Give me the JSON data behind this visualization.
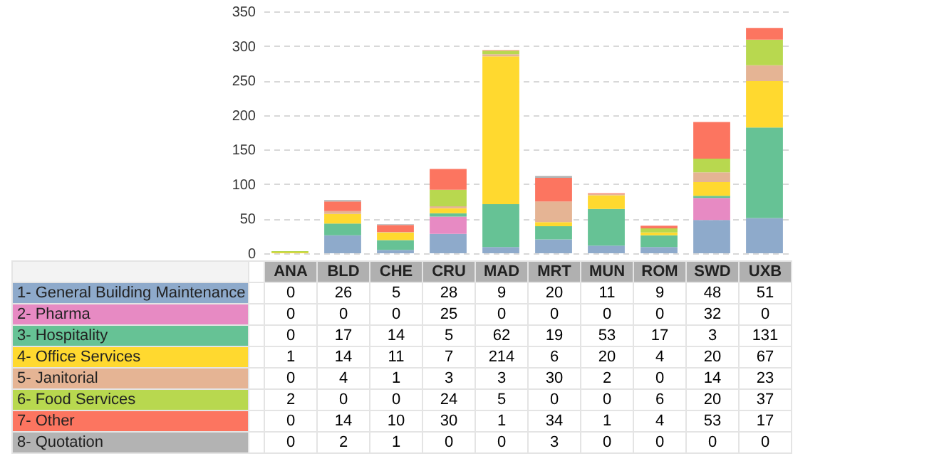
{
  "chart_data": {
    "type": "bar",
    "stacked": true,
    "categories": [
      "ANA",
      "BLD",
      "CHE",
      "CRU",
      "MAD",
      "MRT",
      "MUN",
      "ROM",
      "SWD",
      "UXB"
    ],
    "series": [
      {
        "name": "1- General Building Maintenance",
        "color": "#8eaacb",
        "values": [
          0,
          26,
          5,
          28,
          9,
          20,
          11,
          9,
          48,
          51
        ]
      },
      {
        "name": "2- Pharma",
        "color": "#e78ac3",
        "values": [
          0,
          0,
          0,
          25,
          0,
          0,
          0,
          0,
          32,
          0
        ]
      },
      {
        "name": "3- Hospitality",
        "color": "#66c295",
        "values": [
          0,
          17,
          14,
          5,
          62,
          19,
          53,
          17,
          3,
          131
        ]
      },
      {
        "name": "4- Office Services",
        "color": "#ffd92f",
        "values": [
          1,
          14,
          11,
          7,
          214,
          6,
          20,
          4,
          20,
          67
        ]
      },
      {
        "name": "5- Janitorial",
        "color": "#e5b494",
        "values": [
          0,
          4,
          1,
          3,
          3,
          30,
          2,
          0,
          14,
          23
        ]
      },
      {
        "name": "6- Food Services",
        "color": "#b8d84f",
        "values": [
          2,
          0,
          0,
          24,
          5,
          0,
          0,
          6,
          20,
          37
        ]
      },
      {
        "name": "7- Other",
        "color": "#fc7560",
        "values": [
          0,
          14,
          10,
          30,
          1,
          34,
          1,
          4,
          53,
          17
        ]
      },
      {
        "name": "8- Quotation",
        "color": "#b3b3b3",
        "values": [
          0,
          2,
          1,
          0,
          0,
          3,
          0,
          0,
          0,
          0
        ]
      }
    ],
    "ylim": [
      0,
      350
    ],
    "yticks": [
      0,
      50,
      100,
      150,
      200,
      250,
      300,
      350
    ],
    "grid": "y",
    "legend": "bottom left",
    "data_labels": true,
    "tick_labels": "y"
  }
}
